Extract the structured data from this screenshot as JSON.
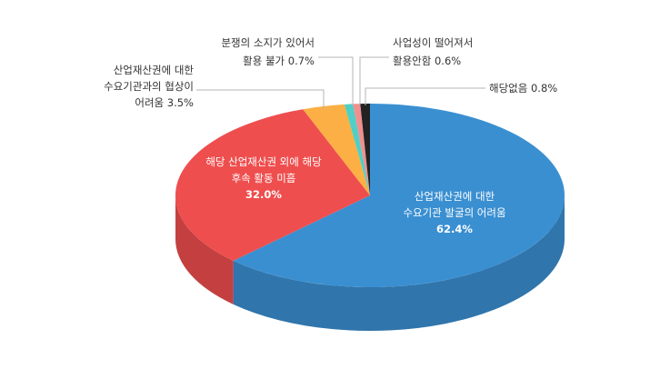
{
  "chart_data": {
    "type": "pie",
    "title": "",
    "slices": [
      {
        "label_lines": [
          "산업재산권에 대한",
          "수요기관 발굴의 어려움"
        ],
        "value_text": "62.4%",
        "value": 62.4,
        "color": "#3a8fd1"
      },
      {
        "label_lines": [
          "해당 산업재산권 외에 해당",
          "후속 활동 미흡"
        ],
        "value_text": "32.0%",
        "value": 32.0,
        "color": "#ef4e4e"
      },
      {
        "label_lines": [
          "산업재산권에 대한",
          "수요기관과의 협상이",
          "어려움 3.5%"
        ],
        "value_text": "",
        "value": 3.5,
        "color": "#fbaf44"
      },
      {
        "label_lines": [
          "분쟁의 소지가 있어서",
          "활용 불가 0.7%"
        ],
        "value_text": "",
        "value": 0.7,
        "color": "#4fcfc6"
      },
      {
        "label_lines": [
          "사업성이 떨어져서",
          "활용안함 0.6%"
        ],
        "value_text": "",
        "value": 0.6,
        "color": "#f08f8f"
      },
      {
        "label_lines": [
          "해당없음 0.8%"
        ],
        "value_text": "",
        "value": 0.8,
        "color": "#222222"
      }
    ]
  }
}
